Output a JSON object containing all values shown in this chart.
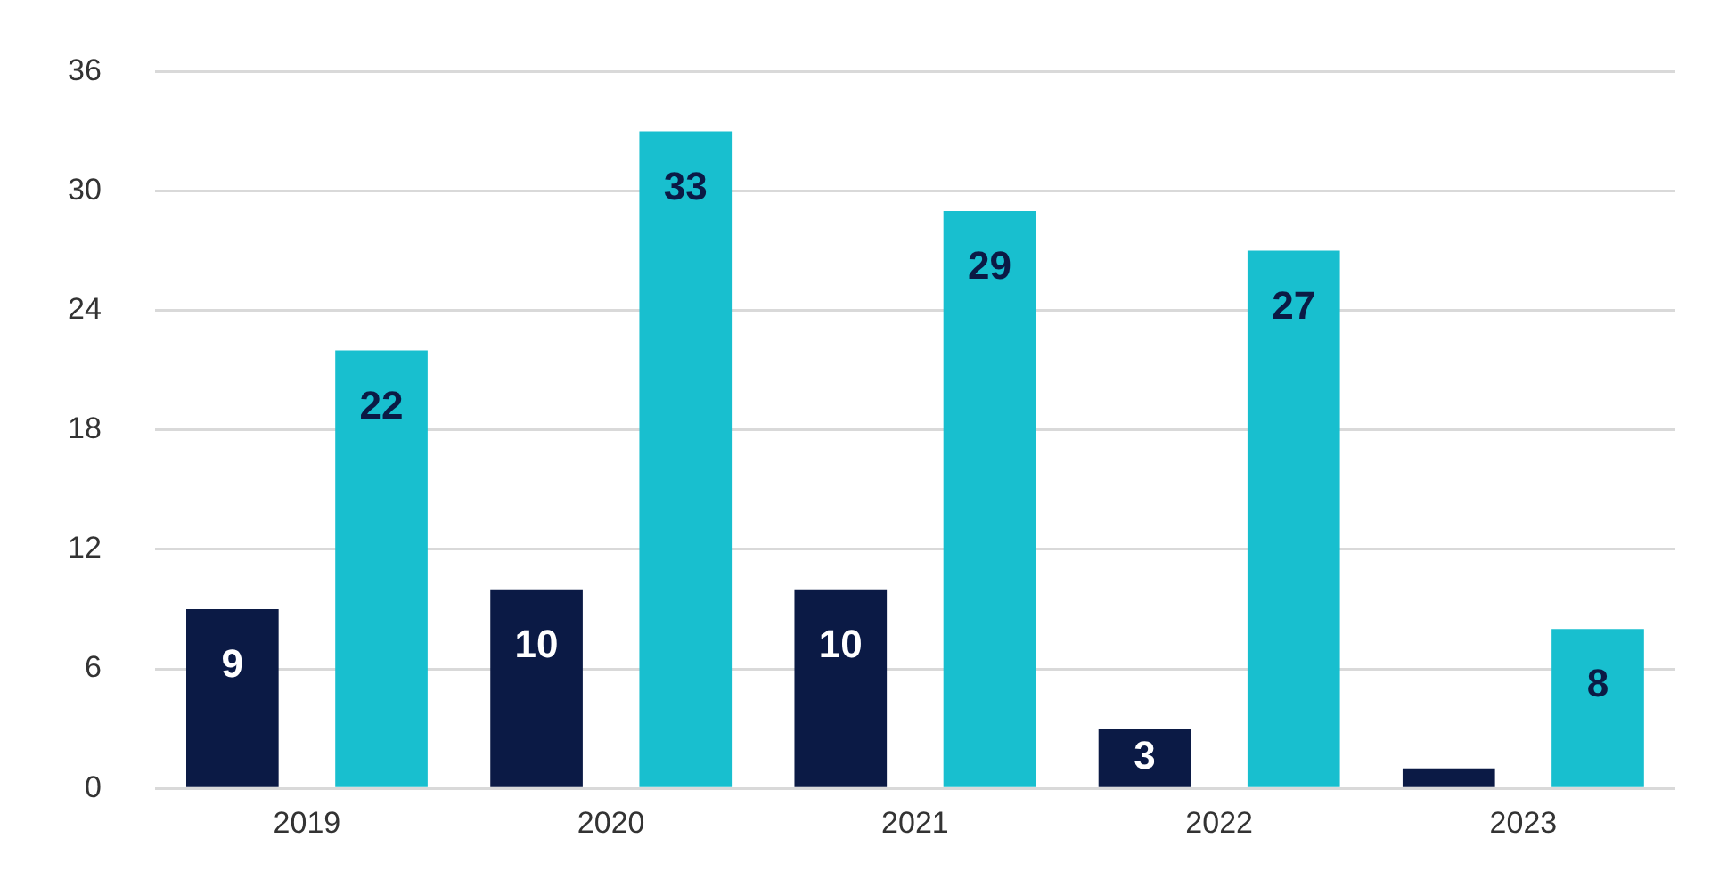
{
  "chart_data": {
    "type": "bar",
    "categories": [
      "2019",
      "2020",
      "2021",
      "2022",
      "2023"
    ],
    "series": [
      {
        "color": "#0b1a45",
        "values": [
          9,
          10,
          10,
          3,
          1
        ],
        "value_labels": [
          "9",
          "10",
          "10",
          "3",
          null
        ]
      },
      {
        "color": "#18bfcf",
        "values": [
          22,
          33,
          29,
          27,
          8
        ],
        "value_labels": [
          "22",
          "33",
          "29",
          "27",
          "8"
        ]
      }
    ],
    "ylim": [
      0,
      36
    ],
    "yticks": [
      0,
      6,
      12,
      18,
      24,
      30,
      36
    ],
    "grid": "y",
    "legend": false
  }
}
